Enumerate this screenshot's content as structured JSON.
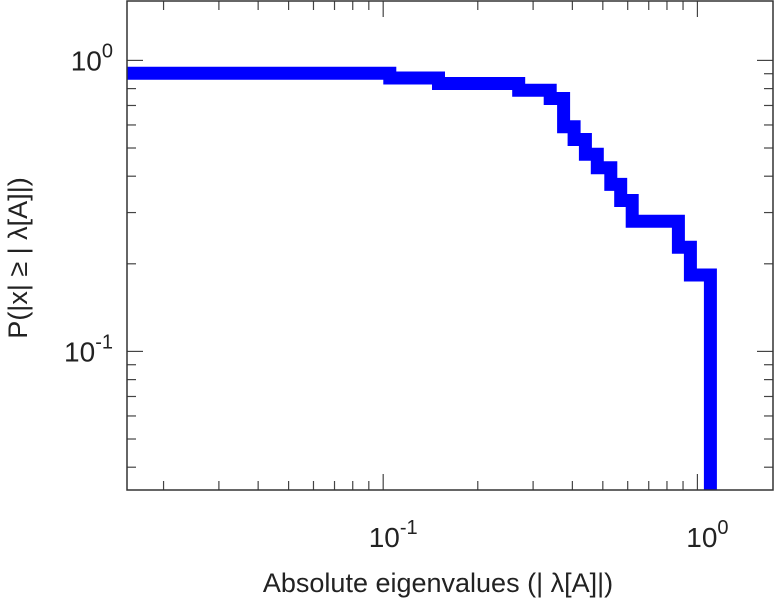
{
  "chart_data": {
    "type": "line",
    "xlabel": "Absolute eigenvalues (|      λ[A]|)",
    "ylabel": "P(|x|  ≥ | λ[A]|)",
    "xscale": "log",
    "yscale": "log",
    "xlim": [
      0.0153,
      1.74
    ],
    "ylim": [
      0.0334,
      1.6
    ],
    "grid": false,
    "legend": "none",
    "x_ticks": [
      {
        "base": "10",
        "exp": "-1",
        "value": 0.1
      },
      {
        "base": "10",
        "exp": "0",
        "value": 1.0
      }
    ],
    "y_ticks": [
      {
        "base": "10",
        "exp": "0",
        "value": 1.0
      },
      {
        "base": "10",
        "exp": "-1",
        "value": 0.1
      }
    ],
    "series": [
      {
        "style": "step",
        "color": "#0000ff",
        "points": [
          [
            0.0153,
            0.903
          ],
          [
            0.105,
            0.903
          ],
          [
            0.105,
            0.87
          ],
          [
            0.15,
            0.87
          ],
          [
            0.15,
            0.833
          ],
          [
            0.27,
            0.833
          ],
          [
            0.27,
            0.79
          ],
          [
            0.34,
            0.79
          ],
          [
            0.34,
            0.74
          ],
          [
            0.375,
            0.74
          ],
          [
            0.375,
            0.592
          ],
          [
            0.405,
            0.592
          ],
          [
            0.405,
            0.535
          ],
          [
            0.44,
            0.535
          ],
          [
            0.44,
            0.476
          ],
          [
            0.48,
            0.476
          ],
          [
            0.48,
            0.428
          ],
          [
            0.53,
            0.428
          ],
          [
            0.53,
            0.375
          ],
          [
            0.57,
            0.375
          ],
          [
            0.57,
            0.33
          ],
          [
            0.62,
            0.33
          ],
          [
            0.62,
            0.28
          ],
          [
            0.87,
            0.28
          ],
          [
            0.87,
            0.228
          ],
          [
            0.95,
            0.228
          ],
          [
            0.95,
            0.183
          ],
          [
            1.1,
            0.183
          ],
          [
            1.1,
            0.0334
          ]
        ]
      }
    ]
  }
}
